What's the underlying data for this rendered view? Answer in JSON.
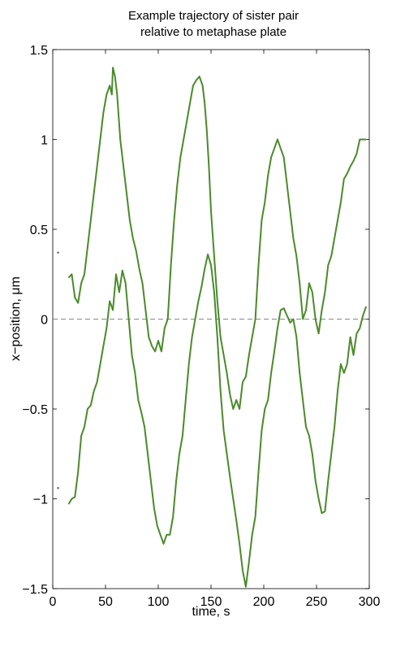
{
  "chart_data": {
    "type": "line",
    "title_line1": "Example trajectory of sister pair",
    "title_line2": "relative to metaphase plate",
    "xlabel": "time, s",
    "ylabel": "x−position, μm",
    "xlim": [
      0,
      300
    ],
    "ylim": [
      -1.5,
      1.5
    ],
    "xticks": [
      0,
      50,
      100,
      150,
      200,
      250,
      300
    ],
    "yticks": [
      -1.5,
      -1,
      -0.5,
      0,
      0.5,
      1,
      1.5
    ],
    "xtick_labels": [
      "0",
      "50",
      "100",
      "150",
      "200",
      "250",
      "300"
    ],
    "ytick_labels": [
      "−1.5",
      "−1",
      "−0.5",
      "0",
      "0.5",
      "1",
      "1.5"
    ],
    "line_color": "#4a8a2a",
    "reference_line": {
      "y": 0,
      "style": "dashed",
      "color": "#888888"
    },
    "series": [
      {
        "x": [
          15,
          18,
          21,
          24,
          27,
          30,
          33,
          36,
          39,
          42,
          45,
          48,
          51,
          54,
          56,
          57,
          59,
          61,
          64,
          67,
          70,
          73,
          76,
          79,
          82,
          85,
          88,
          91,
          94,
          97,
          100,
          103,
          106,
          109,
          112,
          115,
          118,
          121,
          124,
          127,
          130,
          133,
          136,
          139,
          142,
          144,
          146,
          148,
          150,
          153,
          156,
          159,
          162,
          165,
          168,
          171,
          174,
          177,
          180,
          183,
          186,
          189,
          192,
          195,
          198,
          201,
          204,
          207,
          210,
          213,
          216,
          219,
          222,
          225,
          228,
          231,
          234,
          237,
          240,
          243,
          246,
          249,
          252,
          255,
          258,
          261,
          264,
          267,
          270,
          273,
          276,
          279,
          282,
          285,
          288,
          291,
          294,
          297
        ],
        "y": [
          0.23,
          0.25,
          0.12,
          0.09,
          0.2,
          0.25,
          0.4,
          0.55,
          0.7,
          0.85,
          1.0,
          1.15,
          1.25,
          1.3,
          1.25,
          1.4,
          1.35,
          1.25,
          1.0,
          0.85,
          0.7,
          0.55,
          0.45,
          0.38,
          0.28,
          0.2,
          0.05,
          -0.1,
          -0.15,
          -0.18,
          -0.12,
          -0.18,
          -0.05,
          0.0,
          0.3,
          0.55,
          0.75,
          0.9,
          1.0,
          1.1,
          1.2,
          1.3,
          1.33,
          1.35,
          1.3,
          1.2,
          1.05,
          0.85,
          0.6,
          0.35,
          0.1,
          -0.1,
          -0.2,
          -0.3,
          -0.42,
          -0.5,
          -0.45,
          -0.5,
          -0.35,
          -0.32,
          -0.2,
          -0.1,
          0.0,
          0.3,
          0.55,
          0.65,
          0.8,
          0.9,
          0.95,
          1.0,
          0.95,
          0.9,
          0.75,
          0.6,
          0.45,
          0.35,
          0.2,
          0.0,
          0.05,
          0.2,
          0.15,
          0.0,
          -0.08,
          0.05,
          0.15,
          0.3,
          0.35,
          0.45,
          0.55,
          0.65,
          0.78,
          0.81,
          0.85,
          0.88,
          0.92,
          1.0,
          1.0,
          1.0
        ]
      },
      {
        "x": [
          15,
          18,
          21,
          24,
          27,
          30,
          33,
          36,
          39,
          42,
          45,
          48,
          51,
          54,
          57,
          60,
          63,
          66,
          69,
          72,
          75,
          78,
          81,
          84,
          87,
          90,
          93,
          96,
          99,
          102,
          105,
          108,
          111,
          114,
          117,
          120,
          123,
          126,
          129,
          132,
          135,
          138,
          141,
          144,
          147,
          150,
          153,
          156,
          159,
          162,
          165,
          168,
          171,
          174,
          177,
          180,
          183,
          186,
          189,
          192,
          195,
          198,
          201,
          204,
          207,
          210,
          213,
          216,
          219,
          222,
          225,
          228,
          231,
          234,
          237,
          240,
          243,
          246,
          249,
          252,
          255,
          258,
          261,
          264,
          267,
          270,
          273,
          276,
          279,
          282,
          285,
          288,
          291,
          294,
          297
        ],
        "y": [
          -1.03,
          -1.0,
          -0.99,
          -0.85,
          -0.65,
          -0.6,
          -0.5,
          -0.48,
          -0.4,
          -0.35,
          -0.25,
          -0.15,
          -0.05,
          0.1,
          0.05,
          0.25,
          0.15,
          0.27,
          0.2,
          0.0,
          -0.2,
          -0.3,
          -0.45,
          -0.52,
          -0.6,
          -0.75,
          -0.9,
          -1.05,
          -1.15,
          -1.2,
          -1.25,
          -1.2,
          -1.2,
          -1.1,
          -0.9,
          -0.75,
          -0.65,
          -0.45,
          -0.25,
          -0.1,
          0.0,
          0.1,
          0.18,
          0.28,
          0.36,
          0.3,
          0.15,
          -0.1,
          -0.4,
          -0.62,
          -0.75,
          -0.88,
          -1.0,
          -1.12,
          -1.25,
          -1.4,
          -1.49,
          -1.35,
          -1.2,
          -1.1,
          -0.85,
          -0.62,
          -0.5,
          -0.45,
          -0.3,
          -0.18,
          -0.05,
          0.05,
          0.06,
          0.02,
          -0.02,
          0.0,
          -0.1,
          -0.3,
          -0.45,
          -0.6,
          -0.65,
          -0.75,
          -0.9,
          -1.0,
          -1.08,
          -1.07,
          -0.9,
          -0.75,
          -0.6,
          -0.4,
          -0.25,
          -0.3,
          -0.25,
          -0.1,
          -0.2,
          -0.08,
          -0.05,
          0.02,
          0.07
        ]
      }
    ],
    "stray_marks": [
      {
        "x": 2,
        "y": 0.37
      },
      {
        "x": 2,
        "y": -0.94
      }
    ]
  }
}
